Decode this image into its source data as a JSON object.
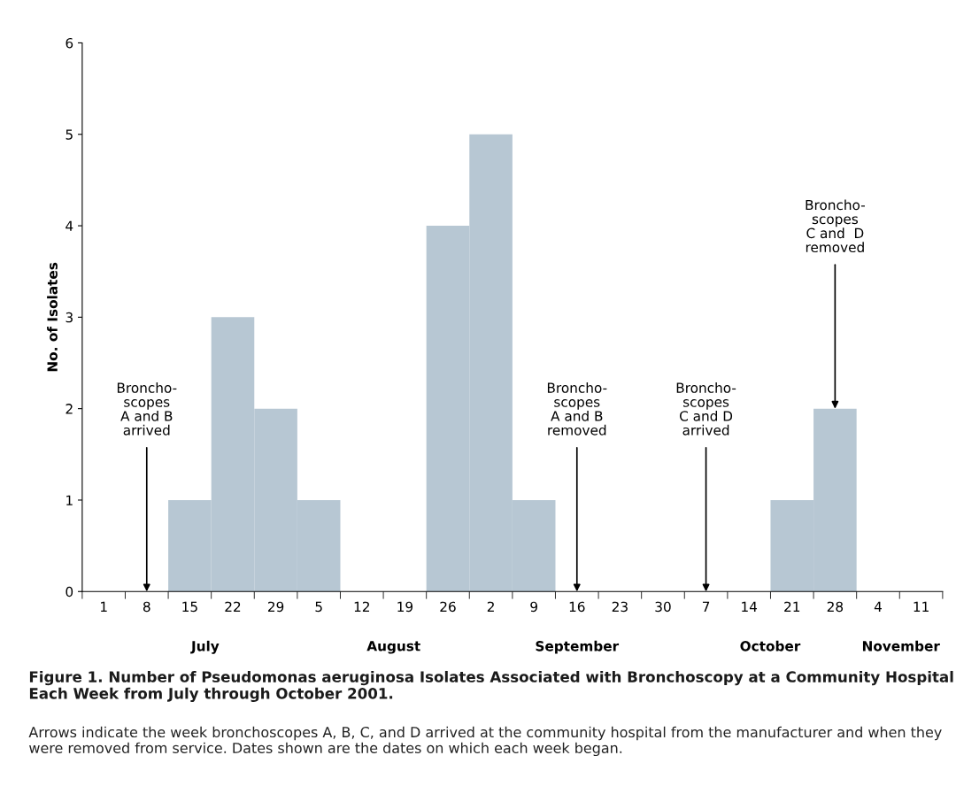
{
  "chart_data": {
    "type": "bar",
    "title": "Figure 1. Number of Pseudomonas aeruginosa Isolates Associated with Bronchoscopy at a Community Hospital Each Week from July through October 2001.",
    "subtitle": "Arrows indicate the week bronchoscopes A, B, C, and D arrived at the community hospital from the manufacturer and when they were removed from service. Dates shown are the dates on which each week began.",
    "ylabel": "No. of Isolates",
    "categories": [
      "1",
      "8",
      "15",
      "22",
      "29",
      "5",
      "12",
      "19",
      "26",
      "2",
      "9",
      "16",
      "23",
      "30",
      "7",
      "14",
      "21",
      "28",
      "4",
      "11"
    ],
    "values": [
      0,
      0,
      1,
      3,
      2,
      1,
      0,
      0,
      4,
      5,
      1,
      0,
      0,
      0,
      0,
      0,
      1,
      2,
      0,
      0
    ],
    "color": "#b7c7d3",
    "ylim": [
      0,
      6
    ],
    "yticks": [
      0,
      1,
      2,
      3,
      4,
      5,
      6
    ],
    "grid": false,
    "legend": false,
    "annotations": [
      {
        "text": "Broncho-\nscopes\nA and B\narrived",
        "x": "8",
        "y": 0
      },
      {
        "text": "Broncho-\nscopes\nA and B\nremoved",
        "x": "16",
        "y": 0
      },
      {
        "text": "Broncho-\nscopes\nC and D\narrived",
        "x": "7",
        "y": 0
      },
      {
        "text": "Broncho-\nscopes\nC and  D\nremoved",
        "x": "28",
        "y": 2
      },
      "July",
      "August",
      "September",
      "October",
      "November"
    ]
  }
}
